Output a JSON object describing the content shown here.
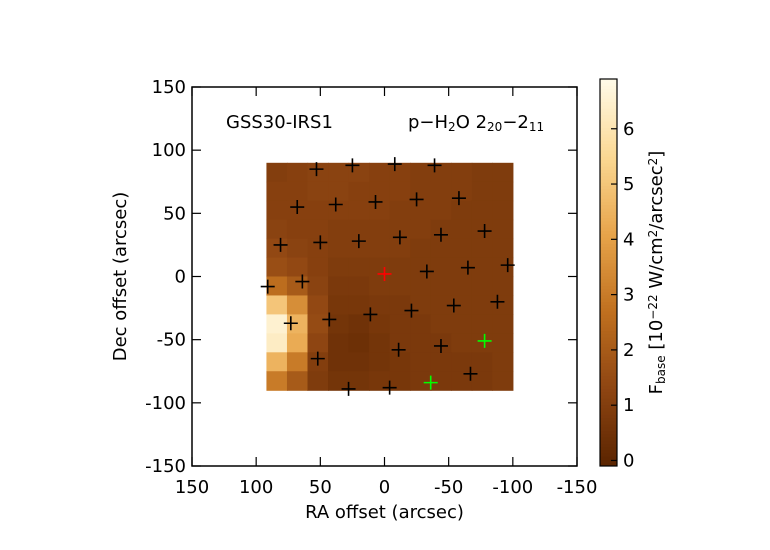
{
  "chart_data": {
    "type": "heatmap",
    "xlabel": "RA offset (arcsec)",
    "ylabel": "Dec offset (arcsec)",
    "source_label": "GSS30-IRS1",
    "line_label_parts": [
      "p−H",
      "2",
      "O 2",
      "20",
      "−2",
      "11"
    ],
    "colorbar_label_parts": [
      "F",
      "base",
      " [10",
      "−22",
      " W/cm",
      "2",
      "/arcsec",
      "2",
      "]"
    ],
    "xlim": [
      150,
      -150
    ],
    "ylim": [
      -150,
      150
    ],
    "xticks": [
      150,
      100,
      50,
      0,
      -50,
      -100,
      -150
    ],
    "yticks": [
      -150,
      -100,
      -50,
      0,
      50,
      100,
      150
    ],
    "clim": [
      -0.1,
      6.9
    ],
    "cticks": [
      0,
      1,
      2,
      3,
      4,
      5,
      6
    ],
    "colormap": [
      "#5a2400",
      "#8e4512",
      "#c0701f",
      "#e7a44a",
      "#fbd893",
      "#fffbe8"
    ],
    "x": [
      84,
      68,
      52,
      36,
      20,
      4,
      -12,
      -28,
      -44,
      -60,
      -76,
      -92
    ],
    "y": [
      82.5,
      67.5,
      52.5,
      37.5,
      22.5,
      7.5,
      -7.5,
      -22.5,
      -37.5,
      -52.5,
      -67.5,
      -82.5
    ],
    "z": [
      [
        1.0,
        1.1,
        1.2,
        1.2,
        1.2,
        1.1,
        1.1,
        1.0,
        1.0,
        1.0,
        0.9,
        0.9
      ],
      [
        1.1,
        1.1,
        1.2,
        1.2,
        1.1,
        1.1,
        1.1,
        1.0,
        1.0,
        1.0,
        0.9,
        0.9
      ],
      [
        1.1,
        1.1,
        1.1,
        1.1,
        1.1,
        1.1,
        1.0,
        1.0,
        1.0,
        0.9,
        0.9,
        0.9
      ],
      [
        1.2,
        1.1,
        1.1,
        1.0,
        1.0,
        1.0,
        1.0,
        1.0,
        0.9,
        0.9,
        0.9,
        0.9
      ],
      [
        1.4,
        1.2,
        1.1,
        1.0,
        1.0,
        1.0,
        1.0,
        0.9,
        0.9,
        0.9,
        0.9,
        0.9
      ],
      [
        1.6,
        1.4,
        1.1,
        0.9,
        0.9,
        0.9,
        0.9,
        0.9,
        0.9,
        0.9,
        0.9,
        0.9
      ],
      [
        2.6,
        2.0,
        1.2,
        0.8,
        0.8,
        0.9,
        0.9,
        0.9,
        0.9,
        0.9,
        0.9,
        0.9
      ],
      [
        5.0,
        3.5,
        1.4,
        0.7,
        0.7,
        0.8,
        0.8,
        0.9,
        0.9,
        0.9,
        0.9,
        0.9
      ],
      [
        6.5,
        4.5,
        1.5,
        0.6,
        0.5,
        0.7,
        0.8,
        0.8,
        0.9,
        0.9,
        0.9,
        0.9
      ],
      [
        6.3,
        4.3,
        1.3,
        0.5,
        0.4,
        0.6,
        0.8,
        0.8,
        0.8,
        0.9,
        0.9,
        0.9
      ],
      [
        4.5,
        3.0,
        1.0,
        0.5,
        0.5,
        0.6,
        0.7,
        0.8,
        0.8,
        0.8,
        0.8,
        0.9
      ],
      [
        3.0,
        2.0,
        0.9,
        0.6,
        0.6,
        0.7,
        0.7,
        0.8,
        0.8,
        0.8,
        0.8,
        0.9
      ]
    ],
    "markers": {
      "x": [
        53,
        25,
        -8,
        -39,
        68,
        38,
        7,
        -25,
        -58,
        81,
        50,
        20,
        -12,
        -44,
        -78,
        91,
        64,
        0,
        -33,
        -65,
        -96,
        73,
        43,
        11,
        -21,
        -54,
        -88,
        52,
        -11,
        -44,
        -78,
        28,
        -4,
        -36,
        -67
      ],
      "y": [
        85,
        88,
        89,
        88,
        55,
        57,
        59,
        61,
        62,
        25,
        27,
        28,
        31,
        33,
        36,
        -8,
        -4,
        2,
        4,
        7,
        9,
        -37,
        -34,
        -30,
        -27,
        -23,
        -20,
        -65,
        -58,
        -55,
        -51,
        -89,
        -88,
        -84,
        -77
      ],
      "colors": [
        "#000000",
        "#000000",
        "#000000",
        "#000000",
        "#000000",
        "#000000",
        "#000000",
        "#000000",
        "#000000",
        "#000000",
        "#000000",
        "#000000",
        "#000000",
        "#000000",
        "#000000",
        "#000000",
        "#000000",
        "#ff0000",
        "#000000",
        "#000000",
        "#000000",
        "#000000",
        "#000000",
        "#000000",
        "#000000",
        "#000000",
        "#000000",
        "#000000",
        "#000000",
        "#000000",
        "#00ff00",
        "#000000",
        "#000000",
        "#00ff00",
        "#000000"
      ]
    }
  }
}
